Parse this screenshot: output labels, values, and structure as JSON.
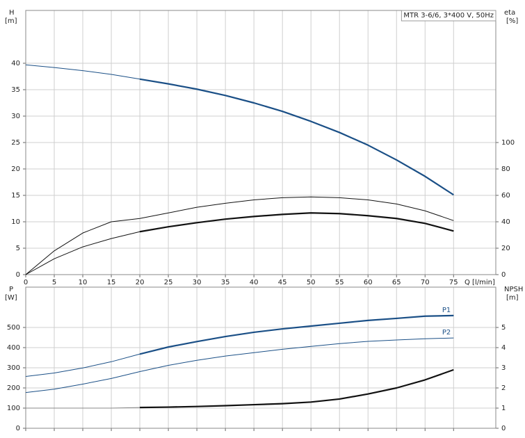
{
  "chart_data": [
    {
      "type": "line",
      "annotation": "MTR 3-6/6, 3*400 V, 50Hz",
      "y_label": "H",
      "y_unit": "[m]",
      "y2_label": "eta",
      "y2_unit": "[%]",
      "x_label": "Q [l/min]",
      "x": [
        0,
        5,
        10,
        15,
        20,
        25,
        30,
        35,
        40,
        45,
        50,
        55,
        60,
        65,
        70,
        75
      ],
      "xlim": [
        0,
        82.4
      ],
      "xticks": [
        0,
        5,
        10,
        15,
        20,
        25,
        30,
        35,
        40,
        45,
        50,
        55,
        60,
        65,
        70,
        75
      ],
      "ylim": [
        0,
        50
      ],
      "yticks": [
        0,
        5,
        10,
        15,
        20,
        25,
        30,
        35,
        40
      ],
      "y2lim": [
        0,
        200
      ],
      "y2ticks": [
        0,
        20,
        40,
        60,
        80,
        100
      ],
      "grid": true,
      "show_xtick_labels": true,
      "series": [
        {
          "color": "#1a4f86",
          "values": [
            39.7,
            39.2,
            38.6,
            37.9,
            37.0,
            36.1,
            35.1,
            33.9,
            32.5,
            30.9,
            29.0,
            26.9,
            24.5,
            21.7,
            18.6,
            15.1
          ],
          "bold_range": [
            20,
            75
          ]
        },
        {
          "color": "#111111",
          "axis": "y2",
          "values": [
            0,
            18,
            31.5,
            40,
            42.5,
            46.7,
            51,
            54,
            56.6,
            58.2,
            58.8,
            58.2,
            56.6,
            53.5,
            48.3,
            40.9
          ]
        },
        {
          "color": "#111111",
          "axis": "y2",
          "values": [
            0,
            12,
            21,
            27.3,
            32.5,
            36.2,
            39.3,
            42,
            44,
            45.6,
            46.7,
            46.2,
            44.6,
            42.5,
            38.8,
            33.0
          ],
          "bold_range": [
            20,
            75
          ]
        }
      ]
    },
    {
      "type": "line",
      "y_label": "P",
      "y_unit": "[W]",
      "y2_label": "NPSH",
      "y2_unit": "[m]",
      "x": [
        0,
        5,
        10,
        15,
        20,
        25,
        30,
        35,
        40,
        45,
        50,
        55,
        60,
        65,
        70,
        75
      ],
      "xlim": [
        0,
        82.4
      ],
      "xticks": [
        0,
        5,
        10,
        15,
        20,
        25,
        30,
        35,
        40,
        45,
        50,
        55,
        60,
        65,
        70,
        75
      ],
      "ylim": [
        0,
        700
      ],
      "yticks": [
        0,
        100,
        200,
        300,
        400,
        500
      ],
      "y2lim": [
        0,
        7
      ],
      "y2ticks": [
        0,
        1,
        2,
        3,
        4,
        5
      ],
      "grid": true,
      "show_xtick_labels": false,
      "series": [
        {
          "name": "P1",
          "color": "#1a4f86",
          "values": [
            257,
            274,
            299,
            330,
            368,
            403,
            430,
            455,
            476,
            493,
            507,
            521,
            535,
            545,
            556,
            559
          ],
          "bold_range": [
            20,
            75
          ]
        },
        {
          "name": "P2",
          "color": "#1a4f86",
          "values": [
            177,
            194,
            219,
            247,
            281,
            312,
            337,
            358,
            375,
            392,
            406,
            420,
            431,
            438,
            444,
            448
          ]
        },
        {
          "color": "#111111",
          "thin_color": "#888888",
          "axis": "y2",
          "values": [
            1.0,
            1.0,
            1.0,
            1.0,
            1.03,
            1.05,
            1.08,
            1.12,
            1.17,
            1.22,
            1.3,
            1.45,
            1.7,
            2.0,
            2.4,
            2.9
          ],
          "bold_range": [
            20,
            75
          ]
        }
      ]
    }
  ]
}
